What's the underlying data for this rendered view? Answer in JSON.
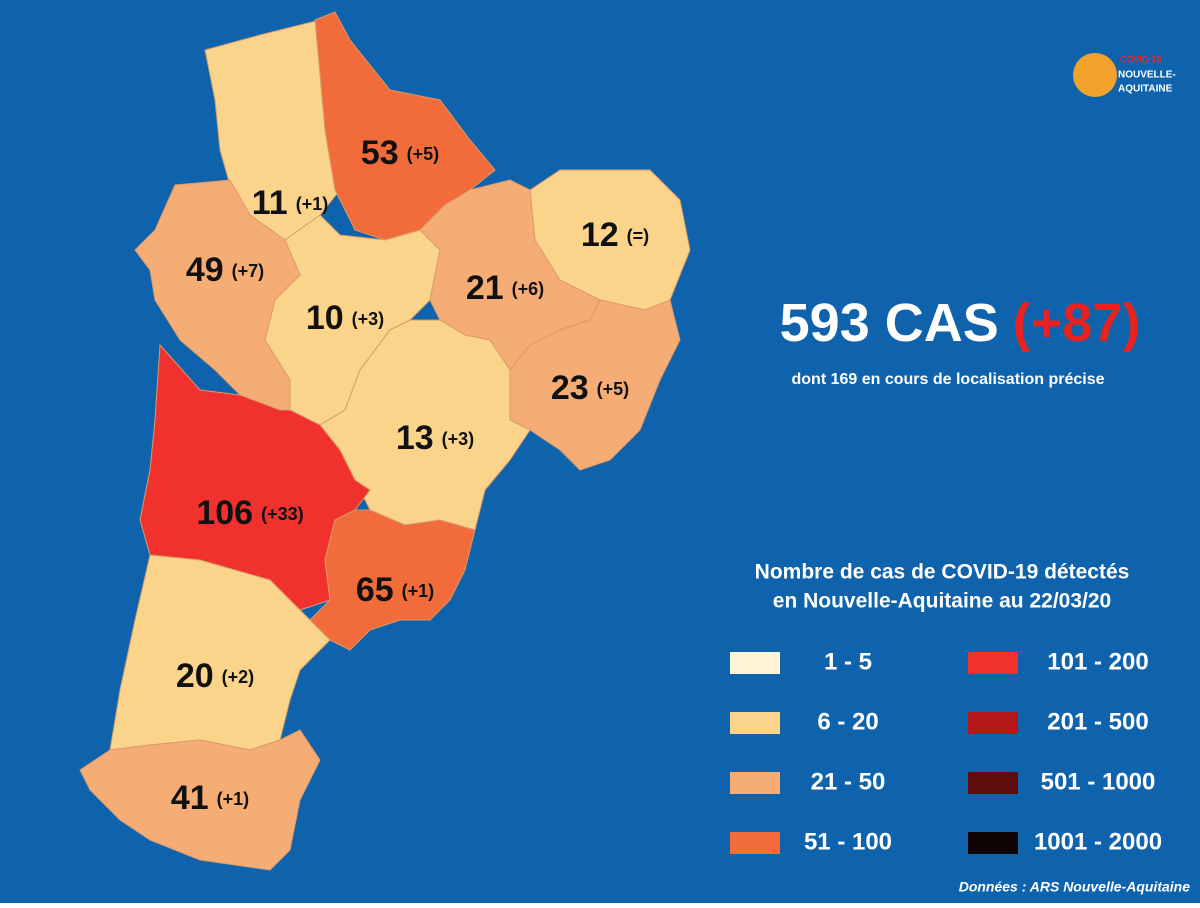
{
  "logo": {
    "line1": "COVID-19",
    "line2": "NOUVELLE-",
    "line3": "AQUITAINE"
  },
  "total": {
    "cases": "593 CAS",
    "change": "(+87)",
    "note": "dont 169 en cours de localisation précise"
  },
  "departments": [
    {
      "count": 11,
      "change": "(+1)",
      "color": "#fad48a"
    },
    {
      "count": 53,
      "change": "(+5)",
      "color": "#f26b3a"
    },
    {
      "count": 49,
      "change": "(+7)",
      "color": "#f6ad75"
    },
    {
      "count": 10,
      "change": "(+3)",
      "color": "#fad48a"
    },
    {
      "count": 21,
      "change": "(+6)",
      "color": "#f6ad75"
    },
    {
      "count": 12,
      "change": "(=)",
      "color": "#fad48a"
    },
    {
      "count": 23,
      "change": "(+5)",
      "color": "#f6ad75"
    },
    {
      "count": 13,
      "change": "(+3)",
      "color": "#fad48a"
    },
    {
      "count": 106,
      "change": "(+33)",
      "color": "#f0312e"
    },
    {
      "count": 65,
      "change": "(+1)",
      "color": "#f26b3a"
    },
    {
      "count": 20,
      "change": "(+2)",
      "color": "#fad48a"
    },
    {
      "count": 41,
      "change": "(+1)",
      "color": "#f6ad75"
    }
  ],
  "legend": {
    "title_line1": "Nombre de cas de COVID-19 détectés",
    "title_line2": "en Nouvelle-Aquitaine au 22/03/20",
    "items": [
      {
        "label": "1 - 5",
        "color": "#fff5d6"
      },
      {
        "label": "6 - 20",
        "color": "#fad48a"
      },
      {
        "label": "21 - 50",
        "color": "#f6ad75"
      },
      {
        "label": "51 - 100",
        "color": "#f26b3a"
      },
      {
        "label": "101 - 200",
        "color": "#f0312e"
      },
      {
        "label": "201 - 500",
        "color": "#b31717"
      },
      {
        "label": "501 - 1000",
        "color": "#5e0c0c"
      },
      {
        "label": "1001 - 2000",
        "color": "#0f0202"
      }
    ]
  },
  "source": "Données : ARS Nouvelle-Aquitaine"
}
